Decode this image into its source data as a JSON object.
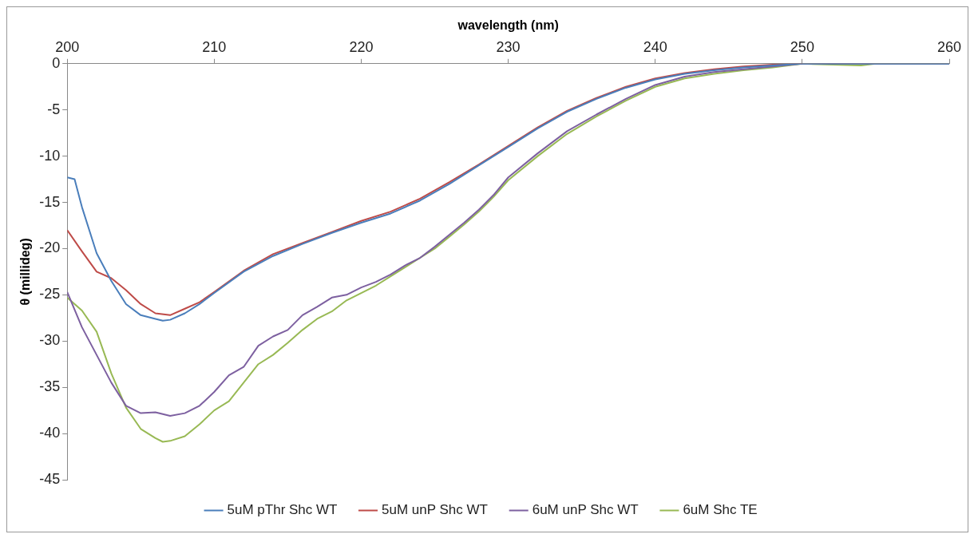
{
  "chart_data": {
    "type": "line",
    "xlabel": "wavelength (nm)",
    "ylabel": "θ (millideg)",
    "xlim": [
      200,
      260
    ],
    "xticks": [
      200,
      210,
      220,
      230,
      240,
      250,
      260
    ],
    "ylim": [
      -45,
      0
    ],
    "yticks": [
      0,
      -5,
      -10,
      -15,
      -20,
      -25,
      -30,
      -35,
      -40,
      -45
    ],
    "grid": false,
    "legend": "bottom",
    "marker": "none",
    "line_style": "solid",
    "series": [
      {
        "name": "5uM pThr Shc WT",
        "color": "#4a7ebb",
        "x": [
          200,
          200.5,
          201,
          202,
          203,
          204,
          205,
          206,
          206.5,
          207,
          208,
          209,
          210,
          212,
          214,
          216,
          218,
          220,
          222,
          224,
          226,
          228,
          230,
          232,
          234,
          236,
          238,
          240,
          242,
          244,
          246,
          248,
          250,
          255,
          260
        ],
        "values": [
          -12.3,
          -12.5,
          -15.5,
          -20.5,
          -23.5,
          -26,
          -27.2,
          -27.6,
          -27.8,
          -27.7,
          -27,
          -26,
          -24.8,
          -22.5,
          -20.8,
          -19.5,
          -18.3,
          -17.2,
          -16.2,
          -14.8,
          -13,
          -11,
          -9,
          -7,
          -5.2,
          -3.8,
          -2.6,
          -1.7,
          -1.1,
          -0.7,
          -0.4,
          -0.2,
          0,
          0,
          0
        ]
      },
      {
        "name": "5uM unP Shc WT",
        "color": "#be4b48",
        "x": [
          200,
          201,
          202,
          203,
          204,
          205,
          206,
          207,
          208,
          209,
          210,
          212,
          214,
          216,
          218,
          220,
          222,
          224,
          226,
          228,
          230,
          232,
          234,
          236,
          238,
          240,
          242,
          244,
          246,
          248,
          250
        ],
        "values": [
          -18,
          -20.3,
          -22.5,
          -23.2,
          -24.5,
          -26,
          -27,
          -27.2,
          -26.5,
          -25.8,
          -24.7,
          -22.4,
          -20.6,
          -19.4,
          -18.2,
          -17,
          -16,
          -14.6,
          -12.8,
          -10.9,
          -8.9,
          -6.9,
          -5.1,
          -3.7,
          -2.5,
          -1.6,
          -1,
          -0.6,
          -0.3,
          -0.1,
          0
        ]
      },
      {
        "name": "6uM unP Shc WT",
        "color": "#7d60a0",
        "x": [
          200,
          201,
          202,
          203,
          204,
          205,
          206,
          207,
          208,
          209,
          210,
          211,
          212,
          213,
          214,
          215,
          216,
          217,
          218,
          219,
          220,
          221,
          222,
          223,
          224,
          225,
          226,
          227,
          228,
          229,
          230,
          232,
          234,
          236,
          238,
          240,
          242,
          244,
          246,
          248,
          250,
          255,
          260
        ],
        "values": [
          -24.7,
          -28.5,
          -31.5,
          -34.5,
          -37,
          -37.8,
          -37.7,
          -38.1,
          -37.8,
          -37,
          -35.5,
          -33.7,
          -32.8,
          -30.5,
          -29.5,
          -28.8,
          -27.2,
          -26.3,
          -25.3,
          -25,
          -24.2,
          -23.6,
          -22.8,
          -21.8,
          -21,
          -19.8,
          -18.5,
          -17.2,
          -15.8,
          -14.2,
          -12.3,
          -9.7,
          -7.3,
          -5.5,
          -3.8,
          -2.3,
          -1.4,
          -0.9,
          -0.6,
          -0.3,
          0,
          0,
          0
        ]
      },
      {
        "name": "6uM Shc TE",
        "color": "#98b954",
        "x": [
          200,
          201,
          202,
          203,
          204,
          205,
          206,
          206.5,
          207,
          208,
          209,
          210,
          211,
          212,
          213,
          214,
          215,
          216,
          217,
          218,
          219,
          220,
          221,
          222,
          223,
          224,
          225,
          226,
          227,
          228,
          229,
          230,
          232,
          234,
          236,
          238,
          240,
          242,
          244,
          246,
          248,
          250,
          254,
          255,
          260
        ],
        "values": [
          -25.3,
          -26.7,
          -29,
          -33.5,
          -37.2,
          -39.5,
          -40.5,
          -40.9,
          -40.8,
          -40.3,
          -39,
          -37.5,
          -36.5,
          -34.5,
          -32.5,
          -31.5,
          -30.2,
          -28.8,
          -27.6,
          -26.8,
          -25.6,
          -24.8,
          -24,
          -23,
          -22,
          -21,
          -20,
          -18.7,
          -17.4,
          -16,
          -14.4,
          -12.6,
          -10,
          -7.6,
          -5.7,
          -4,
          -2.5,
          -1.6,
          -1.1,
          -0.7,
          -0.4,
          0,
          -0.2,
          0,
          0
        ]
      }
    ]
  }
}
